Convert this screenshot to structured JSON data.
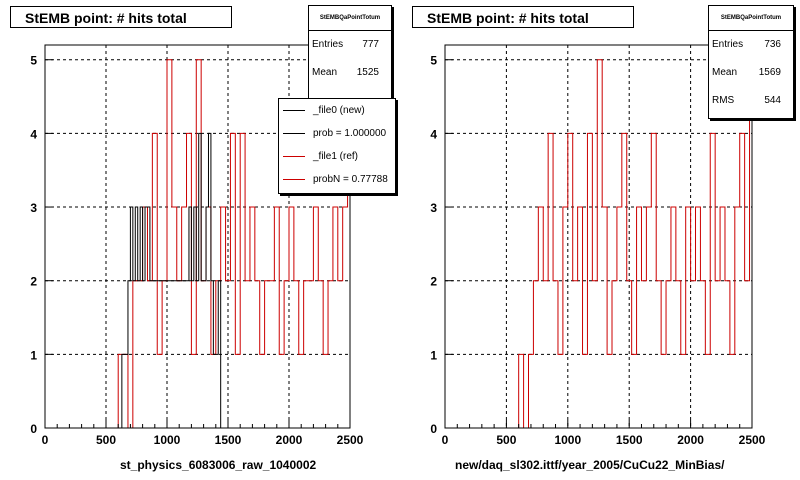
{
  "colors": {
    "new": "#000000",
    "ref": "#cc0000",
    "grid": "#000000",
    "frame": "#000000"
  },
  "pads": [
    {
      "title": "StEMB point: # hits total",
      "stats": {
        "name": "StEMBQaPointTotum",
        "rows": [
          {
            "key": "Entries",
            "value": "777"
          },
          {
            "key": "Mean",
            "value": "1525"
          }
        ]
      },
      "legend": [
        {
          "label": "_file0 (new)",
          "color": "#000000"
        },
        {
          "label": "prob = 1.000000",
          "color": "#000000"
        },
        {
          "label": "_file1 (ref)",
          "color": "#cc0000"
        },
        {
          "label": "probN = 0.77788",
          "color": "#cc0000"
        }
      ],
      "xtitle": "st_physics_6083006_raw_1040002"
    },
    {
      "title": "StEMB point: # hits total",
      "stats": {
        "name": "StEMBQaPointTotum",
        "rows": [
          {
            "key": "Entries",
            "value": "736"
          },
          {
            "key": "Mean",
            "value": "1569"
          },
          {
            "key": "RMS",
            "value": "544"
          }
        ]
      },
      "legend": [],
      "xtitle": "new/daq_sl302.ittf/year_2005/CuCu22_MinBias/"
    }
  ],
  "chart_data": [
    {
      "type": "histogram",
      "title": "StEMB point: # hits total",
      "xlabel": "st_physics_6083006_raw_1040002",
      "ylabel": "",
      "xlim": [
        0,
        2500
      ],
      "ylim": [
        0,
        5.2
      ],
      "xticks": [
        0,
        500,
        1000,
        1500,
        2000,
        2500
      ],
      "yticks": [
        0,
        1,
        2,
        3,
        4,
        5
      ],
      "grid": true,
      "legend_position": "top-right",
      "series": [
        {
          "name": "_file0 (new)",
          "color": "#000000",
          "x": [
            630,
            680,
            700,
            720,
            740,
            760,
            780,
            800,
            820,
            860,
            900,
            1180,
            1200,
            1220,
            1240,
            1260,
            1280,
            1300,
            1320,
            1340,
            1360,
            1380,
            1400,
            1420,
            1440
          ],
          "y": [
            1,
            2,
            3,
            2,
            3,
            2,
            3,
            2,
            3,
            2,
            2,
            3,
            2,
            3,
            2,
            4,
            2,
            2,
            3,
            4,
            2,
            1,
            1,
            2,
            0
          ]
        },
        {
          "name": "_file1 (ref)",
          "color": "#cc0000",
          "x": [
            0,
            40,
            80,
            120,
            160,
            200,
            240,
            280,
            320,
            360,
            400,
            440,
            480,
            520,
            560,
            600,
            640,
            680,
            720,
            760,
            800,
            840,
            880,
            920,
            960,
            1000,
            1040,
            1080,
            1120,
            1160,
            1200,
            1240,
            1280,
            1320,
            1360,
            1400,
            1440,
            1480,
            1520,
            1560,
            1600,
            1640,
            1680,
            1720,
            1760,
            1800,
            1840,
            1880,
            1920,
            1960,
            2000,
            2040,
            2080,
            2120,
            2160,
            2200,
            2240,
            2280,
            2320,
            2360,
            2400,
            2440,
            2480
          ],
          "y": [
            0,
            0,
            0,
            0,
            0,
            0,
            0,
            0,
            0,
            0,
            0,
            0,
            0,
            0,
            0,
            1,
            1,
            0,
            2,
            2,
            3,
            2,
            4,
            1,
            2,
            5,
            3,
            2,
            3,
            4,
            1,
            5,
            2,
            3,
            1,
            2,
            3,
            2,
            4,
            1,
            4,
            2,
            3,
            2,
            1,
            2,
            2,
            3,
            1,
            2,
            3,
            2,
            1,
            2,
            2,
            3,
            2,
            1,
            2,
            3,
            2,
            3,
            5
          ]
        }
      ]
    },
    {
      "type": "histogram",
      "title": "StEMB point: # hits total",
      "xlabel": "new/daq_sl302.ittf/year_2005/CuCu22_MinBias/",
      "ylabel": "",
      "xlim": [
        0,
        2500
      ],
      "ylim": [
        0,
        5.2
      ],
      "xticks": [
        0,
        500,
        1000,
        1500,
        2000,
        2500
      ],
      "yticks": [
        0,
        1,
        2,
        3,
        4,
        5
      ],
      "grid": true,
      "legend_position": "none",
      "series": [
        {
          "name": "",
          "color": "#cc0000",
          "x": [
            0,
            40,
            80,
            120,
            160,
            200,
            240,
            280,
            320,
            360,
            400,
            440,
            480,
            520,
            560,
            600,
            640,
            680,
            720,
            760,
            800,
            840,
            880,
            920,
            960,
            1000,
            1040,
            1080,
            1120,
            1160,
            1200,
            1240,
            1280,
            1320,
            1360,
            1400,
            1440,
            1480,
            1520,
            1560,
            1600,
            1640,
            1680,
            1720,
            1760,
            1800,
            1840,
            1880,
            1920,
            1960,
            2000,
            2040,
            2080,
            2120,
            2160,
            2200,
            2240,
            2280,
            2320,
            2360,
            2400,
            2440,
            2480
          ],
          "y": [
            0,
            0,
            0,
            0,
            0,
            0,
            0,
            0,
            0,
            0,
            0,
            0,
            0,
            0,
            0,
            1,
            0,
            1,
            2,
            3,
            2,
            4,
            2,
            1,
            3,
            4,
            2,
            3,
            1,
            4,
            2,
            5,
            3,
            1,
            2,
            3,
            4,
            2,
            1,
            3,
            2,
            3,
            4,
            2,
            1,
            2,
            3,
            2,
            1,
            3,
            2,
            3,
            2,
            1,
            4,
            2,
            3,
            2,
            1,
            3,
            4,
            2,
            5
          ]
        }
      ]
    }
  ]
}
